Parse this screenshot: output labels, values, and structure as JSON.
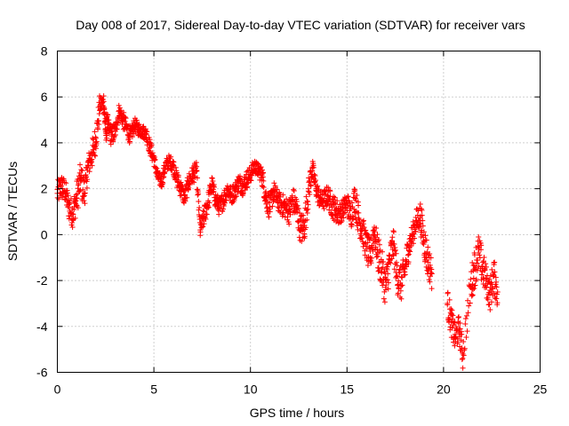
{
  "chart_data": {
    "type": "scatter",
    "title": "Day 008 of 2017, Sidereal Day-to-day VTEC variation (SDTVAR) for receiver vars",
    "xlabel": "GPS time / hours",
    "ylabel": "SDTVAR / TECUs",
    "xlim": [
      0,
      25
    ],
    "ylim": [
      -6,
      8
    ],
    "xticks": [
      0,
      5,
      10,
      15,
      20,
      25
    ],
    "yticks": [
      -6,
      -4,
      -2,
      0,
      2,
      4,
      6,
      8
    ],
    "xtick_labels": [
      "0",
      "5",
      "10",
      "15",
      "20",
      "25"
    ],
    "ytick_labels": [
      "-6",
      "-4",
      "-2",
      "0",
      "2",
      "4",
      "6",
      "8"
    ],
    "grid": true,
    "marker": "+",
    "color": "#ff0000",
    "series": [
      {
        "name": "SDTVAR",
        "x": [
          0.0,
          0.2,
          0.4,
          0.6,
          0.8,
          1.0,
          1.2,
          1.4,
          1.6,
          1.8,
          2.0,
          2.2,
          2.4,
          2.5,
          2.6,
          2.8,
          3.0,
          3.2,
          3.4,
          3.6,
          3.8,
          4.0,
          4.2,
          4.4,
          4.6,
          4.8,
          5.0,
          5.2,
          5.4,
          5.6,
          5.8,
          6.0,
          6.2,
          6.4,
          6.6,
          6.8,
          7.0,
          7.2,
          7.4,
          7.6,
          7.8,
          8.0,
          8.2,
          8.4,
          8.6,
          8.8,
          9.0,
          9.2,
          9.4,
          9.6,
          9.8,
          10.0,
          10.2,
          10.4,
          10.6,
          10.8,
          11.0,
          11.2,
          11.4,
          11.6,
          11.8,
          12.0,
          12.2,
          12.4,
          12.6,
          12.8,
          13.0,
          13.2,
          13.4,
          13.6,
          13.8,
          14.0,
          14.2,
          14.4,
          14.6,
          14.8,
          15.0,
          15.2,
          15.4,
          15.6,
          15.8,
          16.0,
          16.2,
          16.4,
          16.6,
          16.8,
          17.0,
          17.2,
          17.4,
          17.6,
          17.8,
          18.0,
          18.2,
          18.4,
          18.6,
          18.8,
          19.0,
          19.2,
          19.4,
          20.2,
          20.4,
          20.6,
          20.8,
          21.0,
          21.4,
          21.6,
          21.8,
          22.0,
          22.2,
          22.4,
          22.6,
          22.8
        ],
        "y": [
          1.8,
          2.1,
          1.9,
          1.2,
          0.9,
          1.6,
          2.4,
          1.8,
          3.0,
          3.5,
          4.2,
          5.6,
          5.8,
          4.5,
          4.8,
          4.3,
          4.5,
          5.4,
          5.0,
          4.6,
          4.3,
          4.8,
          4.6,
          4.5,
          4.4,
          3.8,
          3.3,
          2.5,
          2.3,
          3.0,
          3.2,
          3.0,
          2.4,
          2.0,
          1.6,
          2.3,
          2.6,
          2.8,
          0.2,
          0.8,
          1.4,
          2.2,
          1.5,
          1.2,
          1.5,
          2.0,
          1.7,
          1.9,
          2.3,
          2.1,
          2.4,
          2.6,
          3.0,
          2.8,
          2.6,
          1.6,
          1.2,
          1.9,
          1.5,
          1.3,
          1.2,
          1.0,
          1.5,
          1.1,
          0.2,
          0.4,
          1.9,
          2.9,
          2.0,
          1.5,
          1.5,
          1.7,
          1.3,
          1.1,
          0.9,
          1.1,
          1.4,
          0.8,
          1.6,
          0.7,
          0.2,
          -0.5,
          -1.0,
          0.2,
          -0.8,
          -1.5,
          -2.3,
          -1.2,
          -0.4,
          -1.8,
          -2.2,
          -1.5,
          -0.5,
          0.0,
          0.6,
          0.8,
          -0.3,
          -1.2,
          -1.7,
          -3.0,
          -3.8,
          -4.5,
          -4.1,
          -5.2,
          -2.3,
          -1.5,
          -0.8,
          -1.4,
          -2.0,
          -2.6,
          -1.8,
          -2.5
        ],
        "spread": [
          0.5,
          0.6,
          0.5,
          0.6,
          0.6,
          0.7,
          0.8,
          0.7,
          0.5,
          0.6,
          0.7,
          0.4,
          0.3,
          0.6,
          0.4,
          0.5,
          0.4,
          0.3,
          0.4,
          0.4,
          0.4,
          0.3,
          0.3,
          0.3,
          0.3,
          0.4,
          0.3,
          0.3,
          0.3,
          0.3,
          0.3,
          0.3,
          0.4,
          0.4,
          0.4,
          0.4,
          0.4,
          0.4,
          0.3,
          0.5,
          0.4,
          0.4,
          0.4,
          0.4,
          0.4,
          0.4,
          0.4,
          0.4,
          0.4,
          0.4,
          0.4,
          0.4,
          0.3,
          0.3,
          0.4,
          0.6,
          0.5,
          0.5,
          0.4,
          0.5,
          0.5,
          0.5,
          0.6,
          0.6,
          0.6,
          0.8,
          0.6,
          0.5,
          0.4,
          0.4,
          0.4,
          0.5,
          0.5,
          0.6,
          0.5,
          0.4,
          0.5,
          0.6,
          0.6,
          0.8,
          0.6,
          0.7,
          0.8,
          0.6,
          0.8,
          0.9,
          0.8,
          0.9,
          0.6,
          0.8,
          0.8,
          0.7,
          0.6,
          0.5,
          0.5,
          0.6,
          0.8,
          0.8,
          0.6,
          0.6,
          0.7,
          0.6,
          0.6,
          0.6,
          0.8,
          0.8,
          0.9,
          0.8,
          0.7,
          0.7,
          0.8,
          0.7
        ]
      }
    ]
  }
}
